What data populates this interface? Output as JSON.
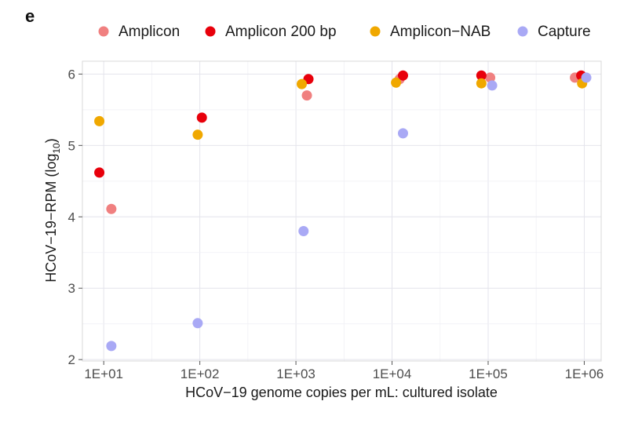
{
  "panel_label": "e",
  "colors": {
    "Amplicon": "#f08080",
    "Amplicon 200 bp": "#e8000b",
    "Amplicon-NAB": "#f0a800",
    "Capture": "#a9a9f5"
  },
  "chart_data": {
    "type": "scatter",
    "xlabel": "HCoV−19 genome copies per mL: cultured isolate",
    "ylabel": "HCoV−19−RPM (log10)",
    "x_scale": "log",
    "xlim": [
      6,
      1500000
    ],
    "ylim": [
      1.98,
      6.18
    ],
    "x_ticks": [
      10,
      100,
      1000,
      10000,
      100000,
      1000000
    ],
    "x_tick_labels": [
      "1E+01",
      "1E+02",
      "1E+03",
      "1E+04",
      "1E+05",
      "1E+06"
    ],
    "y_ticks": [
      2,
      3,
      4,
      5,
      6
    ],
    "y_tick_labels": [
      "2",
      "3",
      "4",
      "5",
      "6"
    ],
    "grid": true,
    "legend_position": "top",
    "series": [
      {
        "name": "Amplicon",
        "points": [
          {
            "x": 12,
            "y": 4.11
          },
          {
            "x": 1300,
            "y": 5.7
          },
          {
            "x": 12000,
            "y": 5.93
          },
          {
            "x": 105000,
            "y": 5.95
          },
          {
            "x": 800000,
            "y": 5.95
          }
        ]
      },
      {
        "name": "Amplicon 200 bp",
        "points": [
          {
            "x": 9,
            "y": 4.62
          },
          {
            "x": 105,
            "y": 5.39
          },
          {
            "x": 1350,
            "y": 5.93
          },
          {
            "x": 13000,
            "y": 5.98
          },
          {
            "x": 85000,
            "y": 5.98
          },
          {
            "x": 930000,
            "y": 5.98
          }
        ]
      },
      {
        "name": "Amplicon-NAB",
        "points": [
          {
            "x": 9,
            "y": 5.34
          },
          {
            "x": 95,
            "y": 5.15
          },
          {
            "x": 1150,
            "y": 5.86
          },
          {
            "x": 11000,
            "y": 5.88
          },
          {
            "x": 85000,
            "y": 5.87
          },
          {
            "x": 950000,
            "y": 5.87
          }
        ]
      },
      {
        "name": "Capture",
        "points": [
          {
            "x": 12,
            "y": 2.19
          },
          {
            "x": 95,
            "y": 2.51
          },
          {
            "x": 1200,
            "y": 3.8
          },
          {
            "x": 13000,
            "y": 5.17
          },
          {
            "x": 110000,
            "y": 5.84
          },
          {
            "x": 1050000,
            "y": 5.95
          }
        ]
      }
    ]
  }
}
